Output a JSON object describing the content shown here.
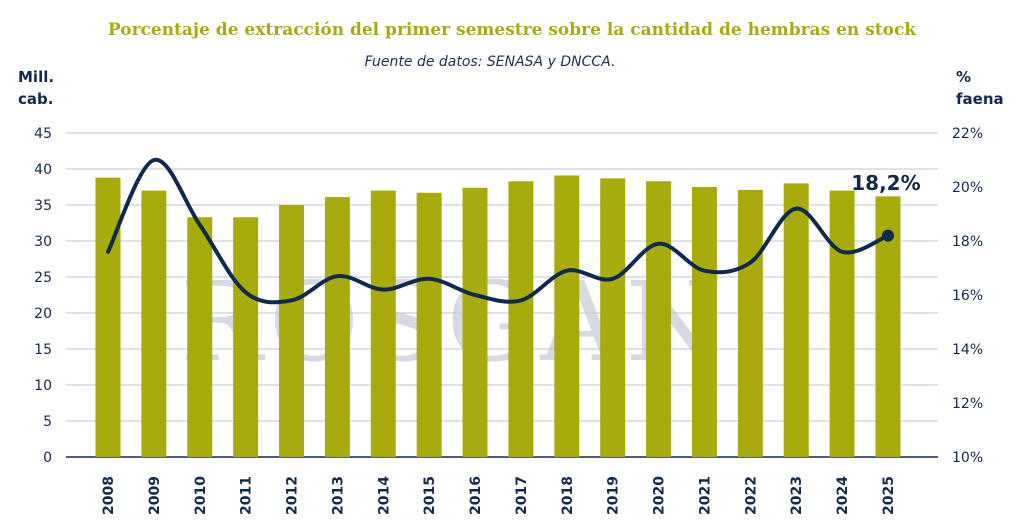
{
  "chart_data": {
    "type": "bar",
    "title": "Porcentaje de extracción del primer semestre sobre la cantidad de hembras en stock",
    "subtitle": "Fuente de datos: SENASA y DNCCA.",
    "ylabel_left": "Mill. cab.",
    "ylabel_right": "% faena",
    "categories": [
      "2008",
      "2009",
      "2010",
      "2011",
      "2012",
      "2013",
      "2014",
      "2015",
      "2016",
      "2017",
      "2018",
      "2019",
      "2020",
      "2021",
      "2022",
      "2023",
      "2024",
      "2025"
    ],
    "ylim_left": [
      0,
      45
    ],
    "yticks_left": [
      "0",
      "5",
      "10",
      "15",
      "20",
      "25",
      "30",
      "35",
      "40",
      "45"
    ],
    "ylim_right": [
      10,
      22
    ],
    "yticks_right": [
      "10%",
      "12%",
      "14%",
      "16%",
      "18%",
      "20%",
      "22%"
    ],
    "grid": "horizontal",
    "watermark": "ROSGAN",
    "colors": {
      "bars": "#a8ab0e",
      "line": "#13294b",
      "title": "#a8ab0e",
      "grid": "#bfc7d2",
      "watermark": "#b7bccb"
    },
    "series": [
      {
        "type": "bar",
        "axis": "left",
        "values": [
          38.8,
          37.0,
          33.3,
          33.3,
          35.0,
          36.1,
          37.0,
          36.7,
          37.4,
          38.3,
          39.1,
          38.7,
          38.3,
          37.5,
          37.1,
          38.0,
          37.0,
          36.2
        ]
      },
      {
        "type": "line",
        "axis": "right",
        "values": [
          17.6,
          21.0,
          18.6,
          16.1,
          15.8,
          16.7,
          16.2,
          16.6,
          16.0,
          15.8,
          16.9,
          16.6,
          17.9,
          16.9,
          17.2,
          19.2,
          17.6,
          18.2
        ],
        "last_label": "18,2%"
      }
    ]
  }
}
